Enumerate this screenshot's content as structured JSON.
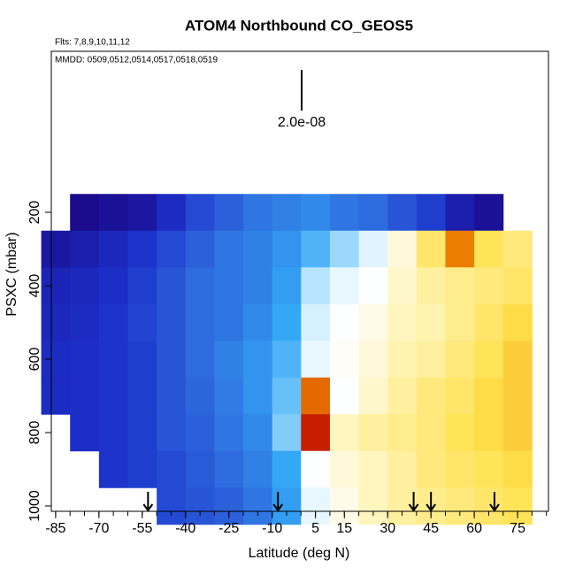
{
  "chart_data": {
    "type": "heatmap",
    "title": "ATOM4 Northbound CO_GEOS5",
    "flights_label": "Flts: 7,8,9,10,11,12",
    "dates_label": "MMDD: 0509,0512,0514,0517,0518,0519",
    "scale_label": "2.0e-08",
    "x_label": "Latitude (deg N)",
    "y_label": "PSXC (mbar)",
    "x": [
      -85,
      -75,
      -65,
      -55,
      -45,
      -35,
      -25,
      -15,
      -5,
      5,
      15,
      25,
      35,
      45,
      55,
      65,
      75
    ],
    "y": [
      200,
      300,
      400,
      500,
      600,
      700,
      800,
      900,
      1000
    ],
    "values": [
      [
        null,
        5.4e-08,
        5.6e-08,
        5.8e-08,
        6.4e-08,
        7e-08,
        7.4e-08,
        7.8e-08,
        8e-08,
        8.2e-08,
        7.8e-08,
        7.6e-08,
        7.2e-08,
        6.8e-08,
        6e-08,
        5.6e-08,
        null
      ],
      [
        5.8e-08,
        6e-08,
        6.3e-08,
        6.6e-08,
        7e-08,
        7.4e-08,
        7.8e-08,
        8e-08,
        8.4e-08,
        9e-08,
        9.6e-08,
        1.04e-07,
        1.16e-07,
        1.3e-07,
        1.46e-07,
        1.32e-07,
        1.28e-07
      ],
      [
        6.2e-08,
        6.3e-08,
        6.5e-08,
        6.8e-08,
        7.2e-08,
        7.6e-08,
        7.8e-08,
        8e-08,
        8.6e-08,
        9.8e-08,
        1.06e-07,
        1.1e-07,
        1.18e-07,
        1.24e-07,
        1.26e-07,
        1.28e-07,
        1.3e-07
      ],
      [
        6.3e-08,
        6.4e-08,
        6.6e-08,
        6.9e-08,
        7.2e-08,
        7.6e-08,
        7.8e-08,
        8.2e-08,
        8.8e-08,
        1.02e-07,
        1.1e-07,
        1.14e-07,
        1.2e-07,
        1.22e-07,
        1.26e-07,
        1.3e-07,
        1.34e-07
      ],
      [
        6.4e-08,
        6.5e-08,
        6.6e-08,
        6.8e-08,
        7.2e-08,
        7.6e-08,
        8e-08,
        8.4e-08,
        9e-08,
        1.06e-07,
        1.12e-07,
        1.16e-07,
        1.22e-07,
        1.24e-07,
        1.28e-07,
        1.32e-07,
        1.36e-07
      ],
      [
        6.4e-08,
        6.5e-08,
        6.6e-08,
        6.8e-08,
        7.2e-08,
        7.5e-08,
        7.9e-08,
        8.4e-08,
        9.2e-08,
        1.48e-07,
        1.1e-07,
        1.18e-07,
        1.24e-07,
        1.28e-07,
        1.3e-07,
        1.34e-07,
        1.36e-07
      ],
      [
        null,
        6.5e-08,
        6.6e-08,
        6.8e-08,
        7.2e-08,
        7.4e-08,
        7.8e-08,
        8.2e-08,
        9.4e-08,
        1.56e-07,
        1.2e-07,
        1.24e-07,
        1.26e-07,
        1.28e-07,
        1.32e-07,
        1.34e-07,
        1.36e-07
      ],
      [
        null,
        null,
        6.6e-08,
        6.8e-08,
        7e-08,
        7.3e-08,
        7.6e-08,
        8e-08,
        8.8e-08,
        1.1e-07,
        1.16e-07,
        1.2e-07,
        1.24e-07,
        1.28e-07,
        1.3e-07,
        1.32e-07,
        1.34e-07
      ],
      [
        null,
        null,
        null,
        null,
        7e-08,
        7.2e-08,
        7.4e-08,
        7.8e-08,
        8.6e-08,
        1.06e-07,
        1.14e-07,
        1.2e-07,
        1.24e-07,
        1.26e-07,
        1.28e-07,
        1.3e-07,
        1.32e-07
      ]
    ],
    "colormap": [
      "#1a0a8c",
      "#1c2fc8",
      "#2f6fe0",
      "#34a8f5",
      "#c8ecff",
      "#ffffff",
      "#fff3b0",
      "#ffe14d",
      "#f08a00",
      "#c81e00"
    ],
    "markers": [
      -53,
      -8,
      39,
      45,
      67
    ],
    "xlim": [
      -86.5,
      85.7
    ],
    "ylim": [
      1014.5,
      -238.6
    ],
    "xticks": [
      -85,
      -70,
      -55,
      -40,
      -25,
      -10,
      5,
      15,
      30,
      45,
      60,
      75
    ],
    "xminorticks": [
      -85,
      -80,
      -75,
      -70,
      -65,
      -60,
      -55,
      -50,
      -45,
      -40,
      -35,
      -30,
      -25,
      -20,
      -15,
      -10,
      -5,
      0,
      5,
      10,
      15,
      20,
      25,
      30,
      35,
      40,
      45,
      50,
      55,
      60,
      65,
      70,
      75,
      80,
      85
    ],
    "yticks": [
      200,
      400,
      600,
      800,
      1000
    ]
  }
}
